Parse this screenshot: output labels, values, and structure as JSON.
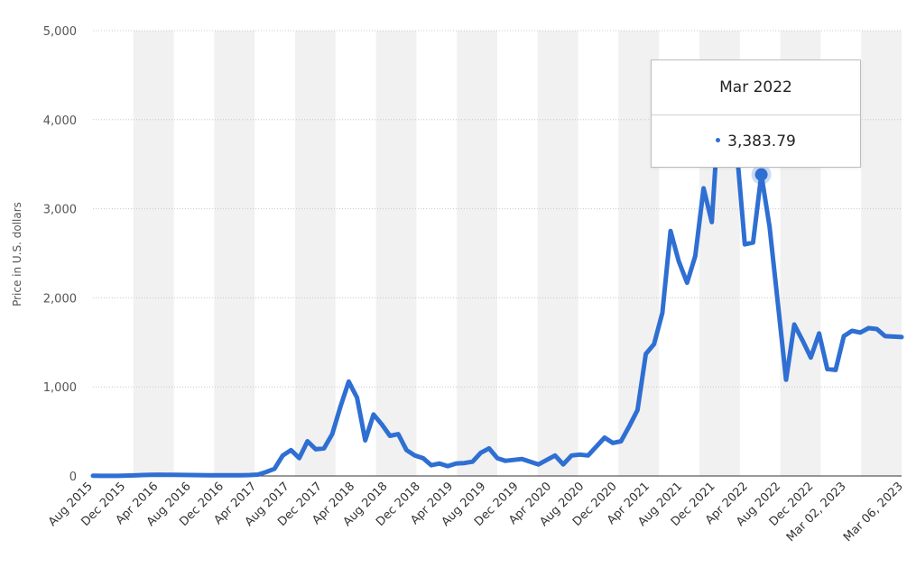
{
  "chart_data": {
    "type": "line",
    "ylabel": "Price in U.S. dollars",
    "ylim": [
      0,
      5000
    ],
    "yticks": [
      0,
      1000,
      2000,
      3000,
      4000,
      5000
    ],
    "ytick_labels": [
      "0",
      "1,000",
      "2,000",
      "3,000",
      "4,000",
      "5,000"
    ],
    "xtick_labels": [
      "Aug 2015",
      "Dec 2015",
      "Apr 2016",
      "Aug 2016",
      "Dec 2016",
      "Apr 2017",
      "Aug 2017",
      "Dec 2017",
      "Apr 2018",
      "Aug 2018",
      "Dec 2018",
      "Apr 2019",
      "Aug 2019",
      "Dec 2019",
      "Apr 2020",
      "Aug 2020",
      "Dec 2020",
      "Apr 2021",
      "Aug 2021",
      "Dec 2021",
      "Apr 2022",
      "Aug 2022",
      "Dec 2022",
      "Mar 02, 2023",
      "Mar 06, 2023"
    ],
    "grid": true,
    "line_color": "#2f6fd3",
    "band_color": "#f1f1f1",
    "series": [
      {
        "values": [
          2,
          1,
          1,
          1,
          4,
          6,
          10,
          12,
          14,
          13,
          12,
          11,
          10,
          9,
          8,
          8,
          7,
          8,
          8,
          10,
          15,
          45,
          80,
          230,
          290,
          200,
          390,
          300,
          310,
          470,
          780,
          1060,
          880,
          400,
          690,
          580,
          450,
          470,
          290,
          230,
          200,
          120,
          140,
          110,
          140,
          145,
          160,
          260,
          310,
          200,
          170,
          180,
          190,
          160,
          130,
          180,
          230,
          130,
          230,
          240,
          230,
          330,
          430,
          370,
          390,
          560,
          740,
          1370,
          1480,
          1830,
          2750,
          2410,
          2170,
          2470,
          3230,
          2850,
          4300,
          4630,
          3690,
          2600,
          2620,
          3383.79,
          2800,
          1940,
          1080,
          1700,
          1520,
          1330,
          1600,
          1200,
          1190,
          1570,
          1630,
          1610,
          1660,
          1650,
          1570,
          1565,
          1560
        ]
      }
    ],
    "highlight": {
      "index": 81,
      "label": "Mar 2022",
      "value": "3,383.79"
    }
  }
}
